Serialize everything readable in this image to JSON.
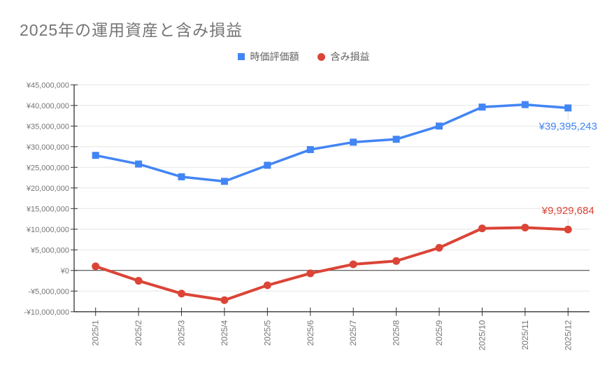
{
  "chart_data": {
    "type": "line",
    "title": "2025年の運用資産と含み損益",
    "categories": [
      "2025/1",
      "2025/2",
      "2025/3",
      "2025/4",
      "2025/5",
      "2025/6",
      "2025/7",
      "2025/8",
      "2025/9",
      "2025/10",
      "2025/11",
      "2025/12"
    ],
    "series": [
      {
        "name": "時価評価額",
        "color": "#4285f4",
        "marker": "square",
        "values": [
          27900000,
          25800000,
          22700000,
          21600000,
          25500000,
          29300000,
          31100000,
          31800000,
          35000000,
          39600000,
          40200000,
          39395243
        ]
      },
      {
        "name": "含み損益",
        "color": "#db4437",
        "marker": "circle",
        "values": [
          1000000,
          -2500000,
          -5600000,
          -7200000,
          -3600000,
          -700000,
          1500000,
          2300000,
          5500000,
          10200000,
          10400000,
          9929684
        ]
      }
    ],
    "annotations": [
      {
        "series": "時価評価額",
        "text": "¥39,395,243",
        "color": "#4285f4",
        "placement": "below"
      },
      {
        "series": "含み損益",
        "text": "¥9,929,684",
        "color": "#db4437",
        "placement": "above"
      }
    ],
    "ylim": [
      -10000000,
      45000000
    ],
    "ytick_step": 5000000,
    "ytick_labels": [
      "¥45,000,000",
      "¥40,000,000",
      "¥35,000,000",
      "¥30,000,000",
      "¥25,000,000",
      "¥20,000,000",
      "¥15,000,000",
      "¥10,000,000",
      "¥5,000,000",
      "¥0",
      "-¥5,000,000",
      "-¥10,000,000"
    ],
    "grid": true,
    "legend_position": "top",
    "xaxis_label_rotation": -90
  },
  "colors": {
    "background": "#ffffff",
    "title_text": "#757575",
    "axis_text": "#757575",
    "legend_text": "#616161",
    "gridline": "#e6e6e6",
    "axis_line": "#333333",
    "zero_line": "#333333",
    "leader_line": "#dadada"
  }
}
